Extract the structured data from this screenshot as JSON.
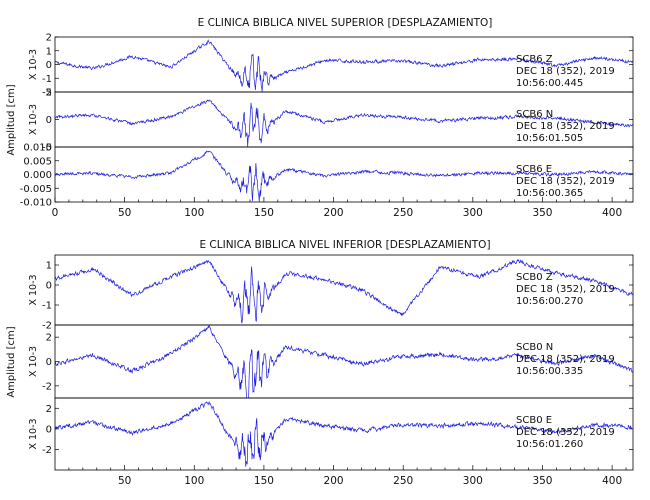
{
  "chart_data": [
    {
      "type": "line",
      "title": "E CLINICA BIBLICA NIVEL SUPERIOR [DESPLAZAMIENTO]",
      "ylabel": "Amplitud [cm]",
      "xlim": [
        0,
        415
      ],
      "x_ticks": [
        "0",
        "50",
        "100",
        "150",
        "200",
        "250",
        "300",
        "350",
        "400"
      ],
      "panels": [
        {
          "station": "SCB6 Z",
          "date": "DEC 18 (352), 2019",
          "time": "10:56:00.445",
          "scale_label": "X 10-3",
          "ylim": [
            -2,
            2
          ],
          "y_ticks": [
            "-2",
            "-1",
            "0",
            "1",
            "2"
          ],
          "series": [
            {
              "values": [
                0.15,
                -0.3,
                0.6,
                -0.2,
                1.7,
                -1.9,
                -0.6,
                0.3,
                0.2,
                0.25,
                -0.1,
                0.35,
                0.4,
                -0.1,
                0.5,
                0.2
              ]
            }
          ]
        },
        {
          "station": "SCB6 N",
          "date": "DEC 18 (352), 2019",
          "time": "10:56:01.505",
          "scale_label": "X 10-3",
          "ylim": [
            -5,
            5
          ],
          "y_ticks": [
            "-5",
            "0",
            "5"
          ],
          "series": [
            {
              "values": [
                0.5,
                0.8,
                -0.8,
                0.5,
                3.5,
                -4,
                1.5,
                -0.5,
                0.8,
                0.4,
                -0.3,
                0.2,
                0.5,
                0.3,
                -0.5,
                -1.2
              ]
            }
          ]
        },
        {
          "station": "SCB6 E",
          "date": "DEC 18 (352), 2019",
          "time": "10:56:00.365",
          "scale_label": "",
          "ylim": [
            -0.01,
            0.01
          ],
          "y_ticks": [
            "-0.010",
            "-0.005",
            "0.000",
            "0.005",
            "0.010"
          ],
          "series": [
            {
              "values": [
                0.0,
                0.0005,
                -0.001,
                0.0005,
                0.0085,
                -0.009,
                0.002,
                -0.0005,
                0.001,
                0.0005,
                -0.0005,
                0.0005,
                0.0005,
                0.0,
                0.001,
                0.0
              ]
            }
          ]
        }
      ]
    },
    {
      "type": "line",
      "title": "E CLINICA BIBLICA NIVEL INFERIOR [DESPLAZAMIENTO]",
      "ylabel": "Amplitud [cm]",
      "xlim": [
        0,
        415
      ],
      "x_ticks": [
        "50",
        "100",
        "150",
        "200",
        "250",
        "300",
        "350",
        "400"
      ],
      "panels": [
        {
          "station": "SCB0 Z",
          "date": "DEC 18 (352), 2019",
          "time": "10:56:00.270",
          "scale_label": "X 10-3",
          "ylim": [
            -2,
            1.5
          ],
          "y_ticks": [
            "-2",
            "-1",
            "0",
            "1"
          ],
          "series": [
            {
              "values": [
                0.3,
                0.8,
                -0.5,
                0.4,
                1.2,
                -1.9,
                0.6,
                0.3,
                -0.3,
                -1.5,
                0.9,
                0.4,
                1.2,
                0.6,
                0.2,
                -0.5
              ]
            }
          ]
        },
        {
          "station": "SCB0 N",
          "date": "DEC 18 (352), 2019",
          "time": "10:56:00.335",
          "scale_label": "X 10-3",
          "ylim": [
            -3,
            3
          ],
          "y_ticks": [
            "-2",
            "0",
            "2"
          ],
          "series": [
            {
              "values": [
                -0.2,
                0.5,
                -0.8,
                0.6,
                2.8,
                -2.8,
                1.2,
                0.5,
                -0.2,
                0.4,
                0.6,
                0.1,
                0.5,
                -0.2,
                0.5,
                -0.8
              ]
            }
          ]
        },
        {
          "station": "SCB0 E",
          "date": "DEC 18 (352), 2019",
          "time": "10:56:01.260",
          "scale_label": "X 10-3",
          "ylim": [
            -4,
            3
          ],
          "y_ticks": [
            "-2",
            "0",
            "2"
          ],
          "series": [
            {
              "values": [
                0.1,
                0.6,
                -0.4,
                0.5,
                2.6,
                -3.8,
                1.0,
                0.3,
                -0.2,
                0.4,
                0.3,
                0.5,
                0.2,
                -0.3,
                0.4,
                0.2
              ]
            }
          ]
        }
      ]
    }
  ]
}
